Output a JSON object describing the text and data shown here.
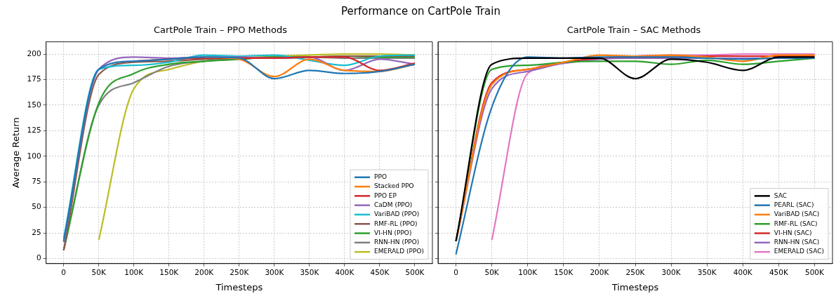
{
  "chart_data": [
    {
      "type": "line",
      "title": "CartPole Train – PPO Methods",
      "annotations": [
        "Performance on CartPole Train"
      ],
      "xlabel": "Timesteps",
      "ylabel": "Average Return",
      "x": [
        0,
        50000,
        100000,
        150000,
        200000,
        250000,
        300000,
        350000,
        400000,
        450000,
        500000
      ],
      "xlim": [
        -25000,
        525000
      ],
      "ylim": [
        -5,
        212
      ],
      "xticks": [
        {
          "value": 0,
          "label": "0"
        },
        {
          "value": 50000,
          "label": "50K"
        },
        {
          "value": 100000,
          "label": "100K"
        },
        {
          "value": 150000,
          "label": "150K"
        },
        {
          "value": 200000,
          "label": "200K"
        },
        {
          "value": 250000,
          "label": "250K"
        },
        {
          "value": 300000,
          "label": "300K"
        },
        {
          "value": 350000,
          "label": "350K"
        },
        {
          "value": 400000,
          "label": "400K"
        },
        {
          "value": 450000,
          "label": "450K"
        },
        {
          "value": 500000,
          "label": "500K"
        }
      ],
      "yticks": [
        0,
        25,
        50,
        75,
        100,
        125,
        150,
        175,
        200
      ],
      "grid": true,
      "legend": "bottom right",
      "series": [
        {
          "name": "PPO",
          "color": "#1f77b4",
          "values": [
            17,
            185,
            193,
            195,
            197,
            196,
            176,
            184,
            181,
            183,
            190
          ]
        },
        {
          "name": "Stacked PPO",
          "color": "#ff7f0e",
          "values": [
            null,
            null,
            null,
            null,
            197,
            195,
            178,
            195,
            184,
            183,
            190
          ]
        },
        {
          "name": "PPO EP",
          "color": "#d62728",
          "values": [
            null,
            null,
            193,
            195,
            196,
            196,
            196,
            197,
            197,
            184,
            191
          ]
        },
        {
          "name": "CaDM (PPO)",
          "color": "#9467bd",
          "values": [
            16,
            185,
            197,
            196,
            197,
            197,
            196,
            197,
            184,
            195,
            190
          ]
        },
        {
          "name": "VariBAD (PPO)",
          "color": "#17becf",
          "values": [
            20,
            185,
            189,
            192,
            199,
            198,
            199,
            194,
            189,
            198,
            199
          ]
        },
        {
          "name": "RMF-RL (PPO)",
          "color": "#8c564b",
          "values": [
            8,
            180,
            192,
            193,
            195,
            196,
            196,
            197,
            198,
            198,
            198
          ]
        },
        {
          "name": "VI-HN (PPO)",
          "color": "#2ca02c",
          "values": [
            8,
            152,
            181,
            190,
            193,
            195,
            197,
            197,
            198,
            197,
            197
          ]
        },
        {
          "name": "RNN-HN (PPO)",
          "color": "#7f7f7f",
          "values": [
            8,
            150,
            172,
            188,
            193,
            195,
            197,
            197,
            196,
            196,
            196
          ]
        },
        {
          "name": "EMERALD (PPO)",
          "color": "#bcbd22",
          "x": [
            50000,
            100000,
            150000,
            200000,
            250000,
            300000,
            350000,
            400000,
            450000,
            500000
          ],
          "values": [
            18,
            166,
            185,
            193,
            196,
            198,
            199,
            200,
            200,
            199
          ]
        }
      ]
    },
    {
      "type": "line",
      "title": "CartPole Train – SAC Methods",
      "xlabel": "Timesteps",
      "x": [
        0,
        50000,
        100000,
        150000,
        200000,
        250000,
        300000,
        350000,
        400000,
        450000,
        500000
      ],
      "xlim": [
        -25000,
        525000
      ],
      "ylim": [
        -5,
        212
      ],
      "xticks": [
        {
          "value": 0,
          "label": "0"
        },
        {
          "value": 50000,
          "label": "50K"
        },
        {
          "value": 100000,
          "label": "100K"
        },
        {
          "value": 150000,
          "label": "150K"
        },
        {
          "value": 200000,
          "label": "200K"
        },
        {
          "value": 250000,
          "label": "250K"
        },
        {
          "value": 300000,
          "label": "300K"
        },
        {
          "value": 350000,
          "label": "350K"
        },
        {
          "value": 400000,
          "label": "400K"
        },
        {
          "value": 450000,
          "label": "450K"
        },
        {
          "value": 500000,
          "label": "500K"
        }
      ],
      "yticks": [
        0,
        25,
        50,
        75,
        100,
        125,
        150,
        175,
        200
      ],
      "grid": true,
      "legend": "bottom right",
      "tick_labels": "x",
      "series": [
        {
          "name": "SAC",
          "color": "#000000",
          "values": [
            17,
            190,
            196,
            196,
            196,
            176,
            195,
            192,
            184,
            197,
            197
          ]
        },
        {
          "name": "PEARL (SAC)",
          "color": "#1f77b4",
          "values": [
            4,
            148,
            197,
            196,
            197,
            197,
            197,
            196,
            195,
            196,
            196
          ]
        },
        {
          "name": "VariBAD (SAC)",
          "color": "#ff7f0e",
          "values": [
            17,
            170,
            185,
            192,
            199,
            198,
            199,
            197,
            193,
            199,
            199
          ]
        },
        {
          "name": "RMF-RL (SAC)",
          "color": "#2ca02c",
          "values": [
            17,
            185,
            189,
            192,
            193,
            193,
            190,
            194,
            190,
            193,
            196
          ]
        },
        {
          "name": "VI-HN (SAC)",
          "color": "#d62728",
          "values": [
            17,
            172,
            185,
            192,
            196,
            197,
            197,
            198,
            198,
            198,
            198
          ]
        },
        {
          "name": "RNN-HN (SAC)",
          "color": "#9467bd",
          "values": [
            17,
            166,
            183,
            191,
            195,
            196,
            196,
            196,
            196,
            196,
            196
          ]
        },
        {
          "name": "EMERALD (SAC)",
          "color": "#e377c2",
          "x": [
            50000,
            100000,
            150000,
            200000,
            250000,
            300000,
            350000,
            400000,
            450000,
            500000
          ],
          "values": [
            18,
            181,
            191,
            196,
            198,
            199,
            199,
            200,
            200,
            200
          ]
        }
      ]
    }
  ]
}
